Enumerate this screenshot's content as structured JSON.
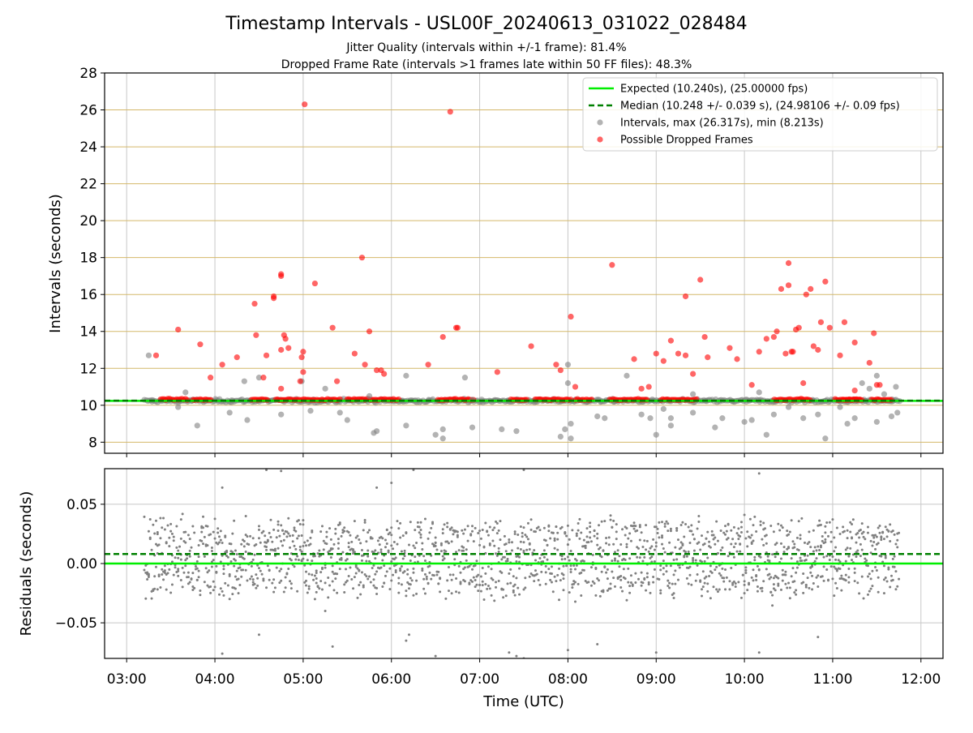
{
  "figure": {
    "title": "Timestamp Intervals - USL00F_20240613_031022_028484",
    "subtitle_1": "Jitter Quality (intervals within +/-1 frame): 81.4%",
    "subtitle_2": "Dropped Frame Rate (intervals >1 frames late within 50 FF files): 48.3%"
  },
  "colors": {
    "expected": "#00ee00",
    "median": "#008000",
    "intervals": "#808080",
    "dropped": "#ff0000",
    "gold_grid": "#d4b86a",
    "grid": "#c8c8c8"
  },
  "chart_data": [
    {
      "type": "scatter",
      "panel": "top",
      "xlabel": "",
      "ylabel": "Intervals (seconds)",
      "x_range": [
        "02:45",
        "12:15"
      ],
      "ylim": [
        7.4,
        28
      ],
      "y_ticks": [
        8,
        10,
        12,
        14,
        16,
        18,
        20,
        22,
        24,
        26,
        28
      ],
      "y_tick_labels": [
        "8",
        "10",
        "12",
        "14",
        "16",
        "18",
        "20",
        "22",
        "24",
        "26",
        "28"
      ],
      "x_ticks": [
        "03:00",
        "04:00",
        "05:00",
        "06:00",
        "07:00",
        "08:00",
        "09:00",
        "10:00",
        "11:00",
        "12:00"
      ],
      "grid": true,
      "legend_placement": "top-right",
      "legend": [
        {
          "label": "Expected (10.240s), (25.00000 fps)",
          "style": "line"
        },
        {
          "label": "Median (10.248 +/- 0.039 s), (24.98106 +/- 0.09 fps)",
          "style": "dashed"
        },
        {
          "label": "Intervals, max (26.317s), min (8.213s)",
          "style": "dot-gray"
        },
        {
          "label": "Possible Dropped Frames",
          "style": "dot-red"
        }
      ],
      "expected_y": 10.24,
      "median_y": 10.248,
      "data_time_range": [
        "03:12",
        "11:45"
      ],
      "series": [
        {
          "name": "Intervals, max (26.317s), min (8.213s)",
          "points": [
            [
              "03:15",
              12.7
            ],
            [
              "03:40",
              10.7
            ],
            [
              "03:48",
              8.9
            ],
            [
              "04:20",
              11.3
            ],
            [
              "04:22",
              9.2
            ],
            [
              "04:30",
              11.5
            ],
            [
              "04:45",
              9.5
            ],
            [
              "04:59",
              11.3
            ],
            [
              "05:05",
              9.7
            ],
            [
              "05:15",
              10.9
            ],
            [
              "05:25",
              9.6
            ],
            [
              "05:30",
              9.2
            ],
            [
              "05:45",
              10.5
            ],
            [
              "05:48",
              8.5
            ],
            [
              "05:50",
              8.6
            ],
            [
              "06:10",
              11.6
            ],
            [
              "06:10",
              8.9
            ],
            [
              "06:30",
              8.4
            ],
            [
              "06:35",
              8.7
            ],
            [
              "06:35",
              8.2
            ],
            [
              "06:50",
              11.5
            ],
            [
              "06:55",
              10.3
            ],
            [
              "06:55",
              8.8
            ],
            [
              "07:15",
              8.7
            ],
            [
              "07:25",
              8.6
            ],
            [
              "07:55",
              8.3
            ],
            [
              "07:58",
              8.7
            ],
            [
              "08:00",
              12.2
            ],
            [
              "08:00",
              11.2
            ],
            [
              "08:02",
              9.0
            ],
            [
              "08:02",
              8.2
            ],
            [
              "08:20",
              9.4
            ],
            [
              "08:25",
              9.3
            ],
            [
              "08:40",
              11.6
            ],
            [
              "08:50",
              9.5
            ],
            [
              "08:56",
              9.3
            ],
            [
              "09:00",
              8.4
            ],
            [
              "09:05",
              9.8
            ],
            [
              "09:10",
              9.3
            ],
            [
              "09:10",
              8.9
            ],
            [
              "09:25",
              9.6
            ],
            [
              "09:25",
              10.6
            ],
            [
              "09:40",
              8.8
            ],
            [
              "09:45",
              9.3
            ],
            [
              "10:00",
              9.1
            ],
            [
              "10:05",
              9.2
            ],
            [
              "10:10",
              10.7
            ],
            [
              "10:15",
              8.4
            ],
            [
              "10:20",
              9.5
            ],
            [
              "10:30",
              9.9
            ],
            [
              "10:40",
              9.3
            ],
            [
              "10:50",
              9.5
            ],
            [
              "10:55",
              8.2
            ],
            [
              "11:05",
              9.9
            ],
            [
              "11:10",
              9.0
            ],
            [
              "11:15",
              9.3
            ],
            [
              "11:20",
              11.2
            ],
            [
              "11:25",
              10.9
            ],
            [
              "11:30",
              9.1
            ],
            [
              "11:30",
              11.6
            ],
            [
              "11:35",
              10.6
            ],
            [
              "11:40",
              9.4
            ],
            [
              "11:43",
              11.0
            ],
            [
              "11:44",
              9.6
            ],
            [
              "03:35",
              9.9
            ],
            [
              "04:10",
              9.6
            ]
          ]
        },
        {
          "name": "Possible Dropped Frames",
          "points": [
            [
              "03:20",
              12.7
            ],
            [
              "03:35",
              14.1
            ],
            [
              "03:50",
              13.3
            ],
            [
              "03:57",
              11.5
            ],
            [
              "04:05",
              12.2
            ],
            [
              "04:15",
              12.6
            ],
            [
              "04:27",
              15.5
            ],
            [
              "04:28",
              13.8
            ],
            [
              "04:35",
              12.7
            ],
            [
              "04:40",
              15.8
            ],
            [
              "04:40",
              15.9
            ],
            [
              "04:45",
              17.1
            ],
            [
              "04:45",
              17.0
            ],
            [
              "04:45",
              13.0
            ],
            [
              "04:47",
              13.8
            ],
            [
              "04:48",
              13.6
            ],
            [
              "04:50",
              13.1
            ],
            [
              "04:45",
              10.9
            ],
            [
              "04:58",
              11.3
            ],
            [
              "04:59",
              12.6
            ],
            [
              "05:00",
              12.9
            ],
            [
              "05:00",
              11.8
            ],
            [
              "05:01",
              26.3
            ],
            [
              "05:08",
              16.6
            ],
            [
              "05:20",
              14.2
            ],
            [
              "05:23",
              11.3
            ],
            [
              "05:35",
              12.8
            ],
            [
              "05:40",
              18.0
            ],
            [
              "05:42",
              12.2
            ],
            [
              "05:45",
              14.0
            ],
            [
              "05:50",
              11.9
            ],
            [
              "05:53",
              11.9
            ],
            [
              "05:55",
              11.7
            ],
            [
              "06:25",
              12.2
            ],
            [
              "06:35",
              13.7
            ],
            [
              "06:44",
              14.2
            ],
            [
              "06:45",
              14.2
            ],
            [
              "06:40",
              25.9
            ],
            [
              "07:12",
              11.8
            ],
            [
              "07:35",
              13.2
            ],
            [
              "07:52",
              12.2
            ],
            [
              "07:55",
              11.9
            ],
            [
              "08:02",
              14.8
            ],
            [
              "08:05",
              11.0
            ],
            [
              "08:30",
              17.6
            ],
            [
              "08:45",
              12.5
            ],
            [
              "08:50",
              10.9
            ],
            [
              "08:55",
              11.0
            ],
            [
              "09:00",
              12.8
            ],
            [
              "09:05",
              12.4
            ],
            [
              "09:10",
              13.5
            ],
            [
              "09:15",
              12.8
            ],
            [
              "09:20",
              15.9
            ],
            [
              "09:20",
              12.7
            ],
            [
              "09:25",
              11.7
            ],
            [
              "09:30",
              16.8
            ],
            [
              "09:33",
              13.7
            ],
            [
              "09:35",
              12.6
            ],
            [
              "09:50",
              13.1
            ],
            [
              "09:55",
              12.5
            ],
            [
              "10:05",
              11.1
            ],
            [
              "10:10",
              12.9
            ],
            [
              "10:15",
              13.6
            ],
            [
              "10:20",
              13.7
            ],
            [
              "10:22",
              14.0
            ],
            [
              "10:25",
              16.3
            ],
            [
              "10:30",
              17.7
            ],
            [
              "10:30",
              16.5
            ],
            [
              "10:32",
              12.9
            ],
            [
              "10:35",
              14.1
            ],
            [
              "10:37",
              14.2
            ],
            [
              "10:40",
              11.2
            ],
            [
              "10:42",
              16.0
            ],
            [
              "10:45",
              16.3
            ],
            [
              "10:47",
              13.2
            ],
            [
              "10:50",
              13.0
            ],
            [
              "10:52",
              14.5
            ],
            [
              "10:55",
              16.7
            ],
            [
              "10:58",
              14.2
            ],
            [
              "11:05",
              12.7
            ],
            [
              "11:08",
              14.5
            ],
            [
              "11:15",
              13.4
            ],
            [
              "11:15",
              10.8
            ],
            [
              "11:25",
              12.3
            ],
            [
              "11:28",
              13.9
            ],
            [
              "11:30",
              11.1
            ],
            [
              "11:32",
              11.1
            ],
            [
              "10:28",
              12.8
            ],
            [
              "10:33",
              12.9
            ],
            [
              "04:33",
              11.5
            ]
          ]
        }
      ]
    },
    {
      "type": "scatter",
      "panel": "bottom",
      "xlabel": "Time (UTC)",
      "ylabel": "Residuals (seconds)",
      "x_range": [
        "02:45",
        "12:15"
      ],
      "ylim": [
        -0.08,
        0.08
      ],
      "y_ticks": [
        -0.05,
        0.0,
        0.05
      ],
      "y_tick_labels": [
        "−0.05",
        "0.00",
        "0.05"
      ],
      "x_ticks": [
        "03:00",
        "04:00",
        "05:00",
        "06:00",
        "07:00",
        "08:00",
        "09:00",
        "10:00",
        "11:00",
        "12:00"
      ],
      "x_tick_labels": [
        "03:00",
        "04:00",
        "05:00",
        "06:00",
        "07:00",
        "08:00",
        "09:00",
        "10:00",
        "11:00",
        "12:00"
      ],
      "grid": true,
      "expected_y": 0.0,
      "median_y": 0.008,
      "residual_spread": 0.03,
      "residual_count": 1800,
      "series": [
        {
          "name": "Residuals",
          "points": [
            [
              "04:05",
              -0.076
            ],
            [
              "05:20",
              -0.07
            ],
            [
              "06:10",
              -0.065
            ],
            [
              "06:12",
              -0.06
            ],
            [
              "06:30",
              -0.078
            ],
            [
              "07:20",
              -0.075
            ],
            [
              "07:25",
              -0.078
            ],
            [
              "07:30",
              -0.08
            ],
            [
              "08:00",
              -0.073
            ],
            [
              "08:20",
              -0.068
            ],
            [
              "09:00",
              -0.075
            ],
            [
              "10:10",
              -0.075
            ],
            [
              "10:50",
              -0.062
            ],
            [
              "05:15",
              -0.04
            ],
            [
              "04:35",
              0.079
            ],
            [
              "04:45",
              0.078
            ],
            [
              "06:00",
              0.068
            ],
            [
              "06:15",
              0.079
            ],
            [
              "07:30",
              0.079
            ],
            [
              "10:10",
              0.076
            ],
            [
              "04:05",
              0.064
            ],
            [
              "04:30",
              -0.06
            ],
            [
              "05:50",
              0.064
            ]
          ]
        }
      ]
    }
  ]
}
